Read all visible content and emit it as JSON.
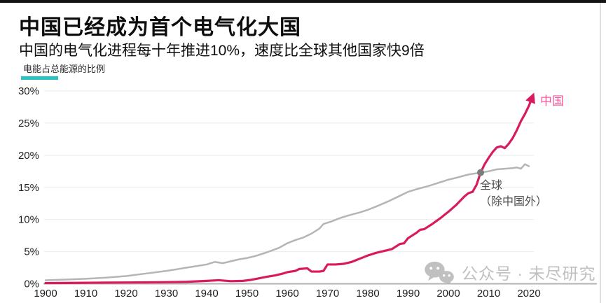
{
  "page": {
    "top_bar_color": "#141414",
    "background": "#ffffff"
  },
  "header": {
    "title": "中国已经成为首个电气化大国",
    "subtitle": "中国的电气化进程每十年推进10%，速度比全球其他国家快9倍",
    "unit_label": "电能占总能源的比例",
    "accent_color": "#2bc2c3"
  },
  "chart_data": {
    "type": "line",
    "title": "中国已经成为首个电气化大国",
    "subtitle": "中国的电气化进程每十年推进10%，速度比全球其他国家快9倍",
    "ylabel": "电能占总能源的比例",
    "xlim": [
      1900,
      2022
    ],
    "ylim": [
      0,
      30
    ],
    "grid": "horizontal",
    "x_ticks": [
      1900,
      1910,
      1920,
      1930,
      1940,
      1950,
      1960,
      1970,
      1980,
      1990,
      2000,
      2010,
      2020
    ],
    "y_ticks": [
      "0%",
      "5%",
      "10%",
      "15%",
      "20%",
      "25%",
      "30%"
    ],
    "series": [
      {
        "name": "中国",
        "color": "#d91a5f",
        "label_color": "#f6569d",
        "arrow_end": true,
        "x": [
          1900,
          1905,
          1910,
          1915,
          1920,
          1925,
          1930,
          1935,
          1940,
          1943,
          1946,
          1949,
          1951,
          1953,
          1955,
          1957,
          1959,
          1960,
          1962,
          1963,
          1965,
          1966,
          1968,
          1969,
          1970,
          1972,
          1974,
          1976,
          1978,
          1980,
          1982,
          1984,
          1986,
          1988,
          1989,
          1990,
          1992,
          1993,
          1994,
          1996,
          1998,
          2000,
          2002,
          2004,
          2005,
          2006,
          2007,
          2008,
          2009,
          2010,
          2011,
          2012,
          2013,
          2014,
          2015,
          2016,
          2017,
          2018,
          2019,
          2020,
          2021
        ],
        "values": [
          0.1,
          0.12,
          0.15,
          0.18,
          0.2,
          0.22,
          0.25,
          0.3,
          0.45,
          0.55,
          0.4,
          0.45,
          0.6,
          0.85,
          1.1,
          1.3,
          1.6,
          1.8,
          2.0,
          2.3,
          2.4,
          1.9,
          1.9,
          2.0,
          3.0,
          3.0,
          3.1,
          3.4,
          3.9,
          4.4,
          4.8,
          5.1,
          5.4,
          6.2,
          6.3,
          7.1,
          7.9,
          8.4,
          8.5,
          9.3,
          10.2,
          11.2,
          12.3,
          13.6,
          14.1,
          14.3,
          15.4,
          17.3,
          18.6,
          19.6,
          20.5,
          21.2,
          21.4,
          21.1,
          21.8,
          22.7,
          23.9,
          25.3,
          26.4,
          27.7,
          29.3
        ]
      },
      {
        "name": "全球（除中国外）",
        "color": "#b5b5b5",
        "label_color": "#4f4f4f",
        "arrow_end": false,
        "x": [
          1900,
          1905,
          1910,
          1915,
          1920,
          1925,
          1930,
          1935,
          1940,
          1942,
          1944,
          1946,
          1948,
          1950,
          1952,
          1955,
          1958,
          1960,
          1962,
          1964,
          1966,
          1968,
          1969,
          1971,
          1973,
          1975,
          1978,
          1980,
          1982,
          1985,
          1988,
          1990,
          1992,
          1995,
          1998,
          2000,
          2002,
          2005,
          2008,
          2010,
          2012,
          2014,
          2016,
          2017,
          2018,
          2019,
          2020
        ],
        "values": [
          0.55,
          0.65,
          0.78,
          0.95,
          1.2,
          1.6,
          2.0,
          2.5,
          3.0,
          3.4,
          3.2,
          3.5,
          3.8,
          4.0,
          4.3,
          4.9,
          5.6,
          6.3,
          6.8,
          7.2,
          7.8,
          8.6,
          9.3,
          9.7,
          10.2,
          10.6,
          11.1,
          11.5,
          12.0,
          12.8,
          13.7,
          14.3,
          14.7,
          15.2,
          15.8,
          16.2,
          16.5,
          17.0,
          17.3,
          17.5,
          17.8,
          17.9,
          18.0,
          18.1,
          17.9,
          18.6,
          18.3
        ]
      }
    ],
    "annotations": [
      {
        "type": "dot",
        "x": 2008,
        "y": 17.3,
        "color": "#7c7c7c",
        "meaning": "crossover point"
      }
    ]
  },
  "legend": {
    "china_label": "中国",
    "world_label_line1": "全球",
    "world_label_line2": "（除中国外）"
  },
  "watermark": {
    "icon": "wechat-icon",
    "text": "公众号 · 未尽研究",
    "color": "#c0c0c0"
  }
}
